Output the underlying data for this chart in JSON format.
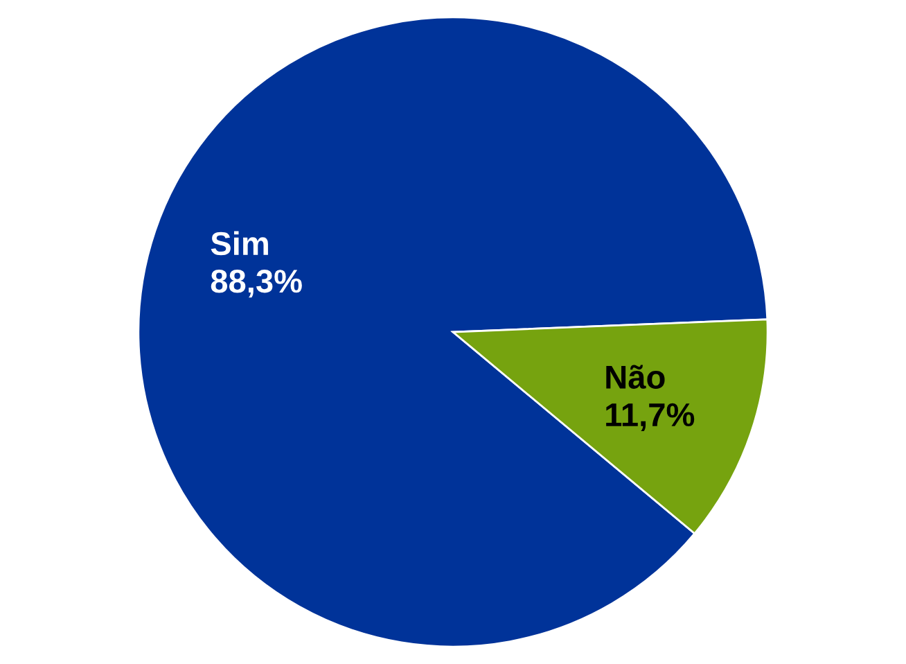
{
  "chart_data": {
    "type": "pie",
    "categories": [
      "Sim",
      "Não"
    ],
    "values": [
      88.3,
      11.7
    ],
    "colors": [
      "#003399",
      "#76a30f"
    ],
    "value_labels": [
      "88,3%",
      "11,7%"
    ],
    "legend": false
  }
}
